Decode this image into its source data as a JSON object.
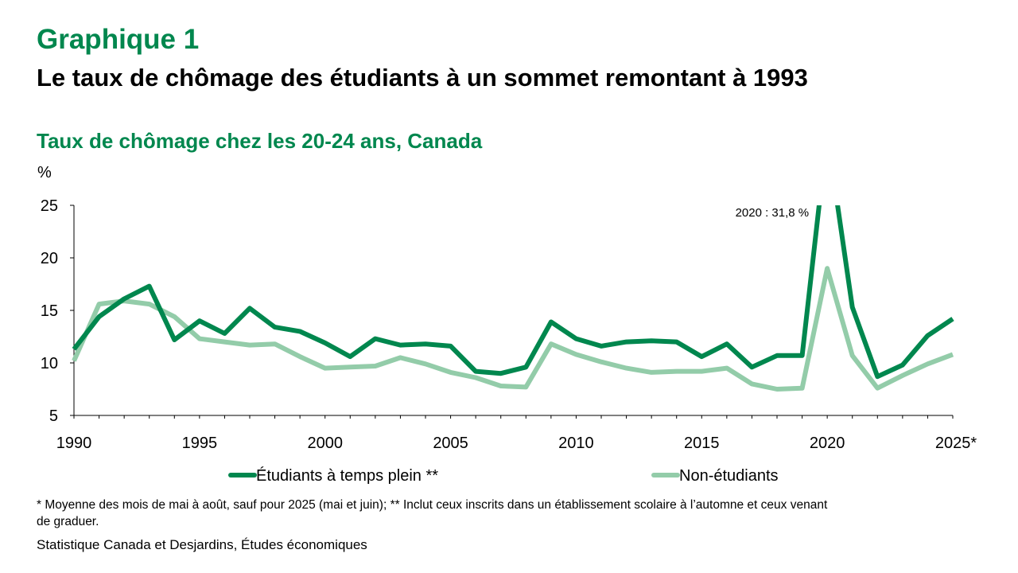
{
  "header": {
    "title": "Graphique 1",
    "subtitle": "Le taux de chômage des étudiants à un sommet remontant à 1993"
  },
  "chart_data": {
    "type": "line",
    "title": "Taux de chômage chez les 20-24 ans, Canada",
    "ylabel": "%",
    "xlabel": "",
    "ylim": [
      5,
      25
    ],
    "xlim": [
      1990,
      2025
    ],
    "yticks": [
      "5",
      "10",
      "15",
      "20",
      "25"
    ],
    "xticks": [
      {
        "value": 1990,
        "label": "1990"
      },
      {
        "value": 1995,
        "label": "1995"
      },
      {
        "value": 2000,
        "label": "2000"
      },
      {
        "value": 2005,
        "label": "2005"
      },
      {
        "value": 2010,
        "label": "2010"
      },
      {
        "value": 2015,
        "label": "2015"
      },
      {
        "value": 2020,
        "label": "2020"
      },
      {
        "value": 2025,
        "label": "2025*"
      }
    ],
    "grid": false,
    "legend_position": "bottom",
    "x": [
      1990,
      1991,
      1992,
      1993,
      1994,
      1995,
      1996,
      1997,
      1998,
      1999,
      2000,
      2001,
      2002,
      2003,
      2004,
      2005,
      2006,
      2007,
      2008,
      2009,
      2010,
      2011,
      2012,
      2013,
      2014,
      2015,
      2016,
      2017,
      2018,
      2019,
      2020,
      2021,
      2022,
      2023,
      2024,
      2025
    ],
    "series": [
      {
        "name": "Étudiants à temps plein **",
        "color": "#00874e",
        "values": [
          11.3,
          14.4,
          16.1,
          17.3,
          12.2,
          14.0,
          12.8,
          15.2,
          13.4,
          13.0,
          11.9,
          10.6,
          12.3,
          11.7,
          11.8,
          11.6,
          9.2,
          9.0,
          9.6,
          13.9,
          12.3,
          11.6,
          12.0,
          12.1,
          12.0,
          10.6,
          11.8,
          9.6,
          10.7,
          10.7,
          31.8,
          15.3,
          8.7,
          9.8,
          12.6,
          14.2
        ]
      },
      {
        "name": "Non-étudiants",
        "color": "#93cca9",
        "values": [
          10.2,
          15.6,
          15.9,
          15.6,
          14.4,
          12.3,
          12.0,
          11.7,
          11.8,
          10.6,
          9.5,
          9.6,
          9.7,
          10.5,
          9.9,
          9.1,
          8.6,
          7.8,
          7.7,
          11.8,
          10.8,
          10.1,
          9.5,
          9.1,
          9.2,
          9.2,
          9.5,
          8.0,
          7.5,
          7.6,
          19.0,
          10.7,
          7.6,
          8.8,
          9.9,
          10.8
        ]
      }
    ],
    "annotations": [
      {
        "text": "2020 : 31,8 %",
        "x": 2020,
        "series": 0
      }
    ]
  },
  "notes": {
    "footnote": "* Moyenne des mois de mai à août, sauf pour 2025 (mai et juin); ** Inclut ceux inscrits dans un établissement scolaire à l’automne et ceux venant de graduer.",
    "source": "Statistique Canada et Desjardins, Études économiques"
  }
}
